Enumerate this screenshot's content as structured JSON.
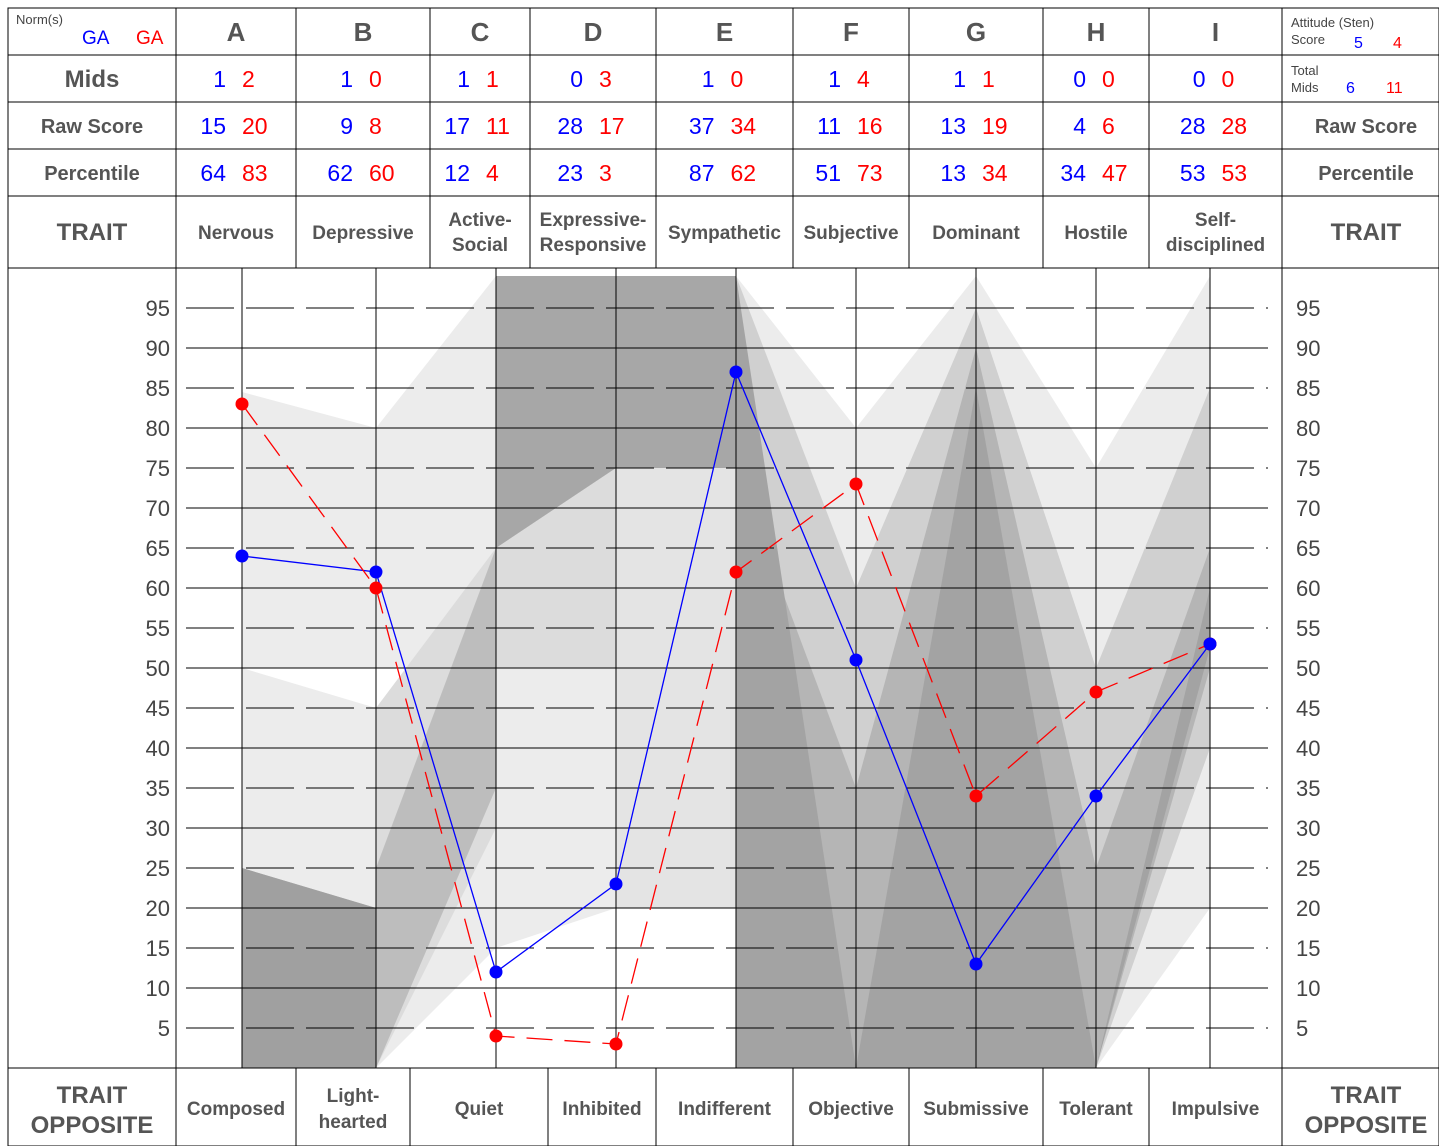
{
  "header": {
    "norms_label": "Norm(s)",
    "norm_blue": "GA",
    "norm_red": "GA",
    "attitude_label_1": "Attitude (Sten)",
    "attitude_label_2": "Score",
    "attitude_blue": "5",
    "attitude_red": "4",
    "total_mids_label_1": "Total",
    "total_mids_label_2": "Mids",
    "total_mids_blue": "6",
    "total_mids_red": "11",
    "row_mids": "Mids",
    "row_raw": "Raw Score",
    "row_percentile": "Percentile",
    "row_trait": "TRAIT",
    "row_opposite_1": "TRAIT",
    "row_opposite_2": "OPPOSITE"
  },
  "colors": {
    "blue": "#0000ff",
    "red": "#ff0000",
    "grid": "#000000"
  },
  "traits": [
    {
      "letter": "A",
      "name": [
        "Nervous"
      ],
      "opposite": [
        "Composed"
      ],
      "mids": [
        "1",
        "2"
      ],
      "raw": [
        "15",
        "20"
      ],
      "pct": [
        "64",
        "83"
      ]
    },
    {
      "letter": "B",
      "name": [
        "Depressive"
      ],
      "opposite": [
        "Light-",
        "hearted"
      ],
      "mids": [
        "1",
        "0"
      ],
      "raw": [
        "9",
        "8"
      ],
      "pct": [
        "62",
        "60"
      ]
    },
    {
      "letter": "C",
      "name": [
        "Active-",
        "Social"
      ],
      "opposite": [
        "Quiet"
      ],
      "mids": [
        "1",
        "1"
      ],
      "raw": [
        "17",
        "11"
      ],
      "pct": [
        "12",
        "4"
      ]
    },
    {
      "letter": "D",
      "name": [
        "Expressive-",
        "Responsive"
      ],
      "opposite": [
        "Inhibited"
      ],
      "mids": [
        "0",
        "3"
      ],
      "raw": [
        "28",
        "17"
      ],
      "pct": [
        "23",
        "3"
      ]
    },
    {
      "letter": "E",
      "name": [
        "Sympathetic"
      ],
      "opposite": [
        "Indifferent"
      ],
      "mids": [
        "1",
        "0"
      ],
      "raw": [
        "37",
        "34"
      ],
      "pct": [
        "87",
        "62"
      ]
    },
    {
      "letter": "F",
      "name": [
        "Subjective"
      ],
      "opposite": [
        "Objective"
      ],
      "mids": [
        "1",
        "4"
      ],
      "raw": [
        "11",
        "16"
      ],
      "pct": [
        "51",
        "73"
      ]
    },
    {
      "letter": "G",
      "name": [
        "Dominant"
      ],
      "opposite": [
        "Submissive"
      ],
      "mids": [
        "1",
        "1"
      ],
      "raw": [
        "13",
        "19"
      ],
      "pct": [
        "13",
        "34"
      ]
    },
    {
      "letter": "H",
      "name": [
        "Hostile"
      ],
      "opposite": [
        "Tolerant"
      ],
      "mids": [
        "0",
        "0"
      ],
      "raw": [
        "4",
        "6"
      ],
      "pct": [
        "34",
        "47"
      ]
    },
    {
      "letter": "I",
      "name": [
        "Self-",
        "disciplined"
      ],
      "opposite": [
        "Impulsive"
      ],
      "mids": [
        "0",
        "0"
      ],
      "raw": [
        "28",
        "28"
      ],
      "pct": [
        "53",
        "53"
      ]
    }
  ],
  "chart_data": {
    "type": "line",
    "categories": [
      "A",
      "B",
      "C",
      "D",
      "E",
      "F",
      "G",
      "H",
      "I"
    ],
    "series": [
      {
        "color": "#0000ff",
        "style": "solid",
        "values": [
          64,
          62,
          12,
          23,
          87,
          51,
          13,
          34,
          53
        ]
      },
      {
        "color": "#ff0000",
        "style": "dashed",
        "values": [
          83,
          60,
          4,
          3,
          62,
          73,
          34,
          47,
          53
        ]
      }
    ],
    "yticks": [
      95,
      90,
      85,
      80,
      75,
      70,
      65,
      60,
      55,
      50,
      45,
      40,
      35,
      30,
      25,
      20,
      15,
      10,
      5
    ],
    "ylim": [
      0,
      100
    ],
    "grid": true
  }
}
